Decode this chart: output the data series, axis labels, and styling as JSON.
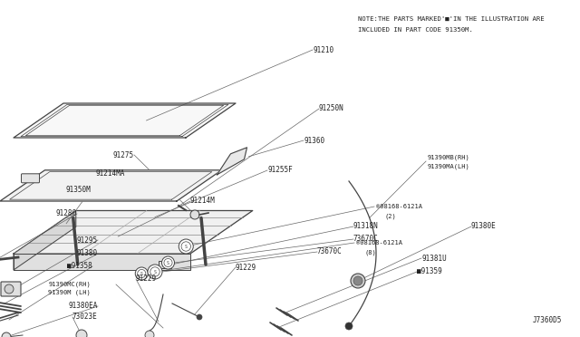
{
  "bg_color": "#ffffff",
  "line_color": "#444444",
  "text_color": "#222222",
  "diagram_id": "J7360D5",
  "note_line1": "NOTE:THE PARTS MARKED'■'IN THE ILLUSTRATION ARE",
  "note_line2": "INCLUDED IN PART CODE 91350M.",
  "fig_w": 6.4,
  "fig_h": 3.72,
  "dpi": 100
}
